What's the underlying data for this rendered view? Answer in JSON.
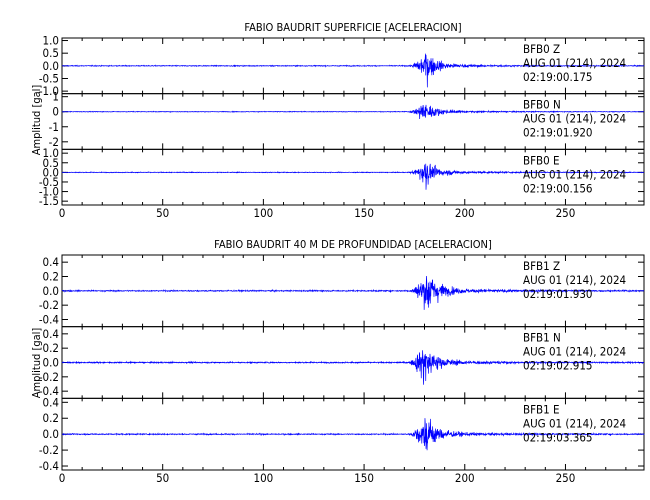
{
  "chart_data": [
    {
      "type": "line",
      "title": "FABIO BAUDRIT SUPERFICIE [ACELERACION]",
      "ylabel": "Amplitud [gal]",
      "xlim": [
        0,
        289
      ],
      "x_ticks": [
        "0",
        "50",
        "100",
        "150",
        "200",
        "250"
      ],
      "traces": [
        {
          "station": "BFB0",
          "component": "Z",
          "date": "AUG 01 (214), 2024",
          "time": "02:19:00.175",
          "ylim": [
            -1.1,
            1.1
          ],
          "y_ticks": [
            "1.0",
            "0.5",
            "0.0",
            "-0.5",
            "-1.0"
          ],
          "onset_s": 172,
          "peak_s": 180,
          "peak_amp": 1.0
        },
        {
          "station": "BFB0",
          "component": "N",
          "date": "AUG 01 (214), 2024",
          "time": "02:19:01.920",
          "ylim": [
            -2.5,
            1.2
          ],
          "y_ticks": [
            "1",
            "0",
            "-1",
            "-2"
          ],
          "onset_s": 172,
          "peak_s": 179,
          "peak_amp": 1.2
        },
        {
          "station": "BFB0",
          "component": "E",
          "date": "AUG 01 (214), 2024",
          "time": "02:19:00.156",
          "ylim": [
            -1.7,
            1.2
          ],
          "y_ticks": [
            "1.0",
            "0.5",
            "0.0",
            "-0.5",
            "-1.0",
            "-1.5"
          ],
          "onset_s": 172,
          "peak_s": 180,
          "peak_amp": 1.1
        }
      ]
    },
    {
      "type": "line",
      "title": "FABIO BAUDRIT 40 M DE PROFUNDIDAD [ACELERACION]",
      "ylabel": "Amplitud [gal]",
      "xlim": [
        0,
        289
      ],
      "x_ticks": [
        "0",
        "50",
        "100",
        "150",
        "200",
        "250"
      ],
      "traces": [
        {
          "station": "BFB1",
          "component": "Z",
          "date": "AUG 01 (214), 2024",
          "time": "02:19:01.930",
          "ylim": [
            -0.5,
            0.5
          ],
          "y_ticks": [
            "0.4",
            "0.2",
            "0.0",
            "-0.2",
            "-0.4"
          ],
          "onset_s": 172,
          "peak_s": 181,
          "peak_amp": 0.5
        },
        {
          "station": "BFB1",
          "component": "N",
          "date": "AUG 01 (214), 2024",
          "time": "02:19:02.915",
          "ylim": [
            -0.5,
            0.5
          ],
          "y_ticks": [
            "0.4",
            "0.2",
            "0.0",
            "-0.2",
            "-0.4"
          ],
          "onset_s": 172,
          "peak_s": 179,
          "peak_amp": 0.5
        },
        {
          "station": "BFB1",
          "component": "E",
          "date": "AUG 01 (214), 2024",
          "time": "02:19:03.365",
          "ylim": [
            -0.45,
            0.45
          ],
          "y_ticks": [
            "0.4",
            "0.2",
            "0.0",
            "-0.2",
            "-0.4"
          ],
          "onset_s": 172,
          "peak_s": 180,
          "peak_amp": 0.42
        }
      ]
    }
  ],
  "colors": {
    "trace": "#0000ff",
    "axes": "#000000",
    "background": "#ffffff"
  }
}
